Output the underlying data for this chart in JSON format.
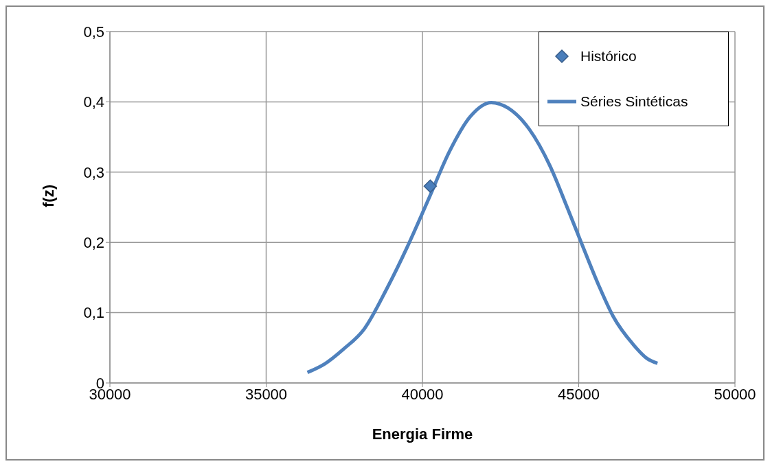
{
  "chart_data": {
    "type": "line",
    "xlabel": "Energia Firme",
    "ylabel": "f(z)",
    "xlim": [
      30000,
      50000
    ],
    "xticks": [
      30000,
      35000,
      40000,
      45000,
      50000
    ],
    "ylim": [
      0,
      0.5
    ],
    "yticks": [
      {
        "value": 0,
        "label": "0"
      },
      {
        "value": 0.1,
        "label": "0,1"
      },
      {
        "value": 0.2,
        "label": "0,2"
      },
      {
        "value": 0.3,
        "label": "0,3"
      },
      {
        "value": 0.4,
        "label": "0,4"
      },
      {
        "value": 0.5,
        "label": "0,5"
      }
    ],
    "grid": true,
    "legend": "top right",
    "series": [
      {
        "name": "Histórico",
        "type": "scatter",
        "marker": "diamond",
        "color": "#4a7ebb",
        "x": [
          40250
        ],
        "values": [
          0.28
        ]
      },
      {
        "name": "Séries Sintéticas",
        "marker": "none",
        "color": "#4f81bd",
        "x": [
          36320,
          36870,
          37470,
          38140,
          38870,
          39530,
          40200,
          40860,
          41530,
          42200,
          42750,
          43420,
          44080,
          44630,
          45080,
          45630,
          46100,
          46740,
          47180,
          47520
        ],
        "values": [
          0.015,
          0.027,
          0.048,
          0.077,
          0.135,
          0.195,
          0.262,
          0.329,
          0.379,
          0.399,
          0.391,
          0.361,
          0.309,
          0.25,
          0.2,
          0.14,
          0.095,
          0.055,
          0.035,
          0.028
        ]
      }
    ]
  }
}
